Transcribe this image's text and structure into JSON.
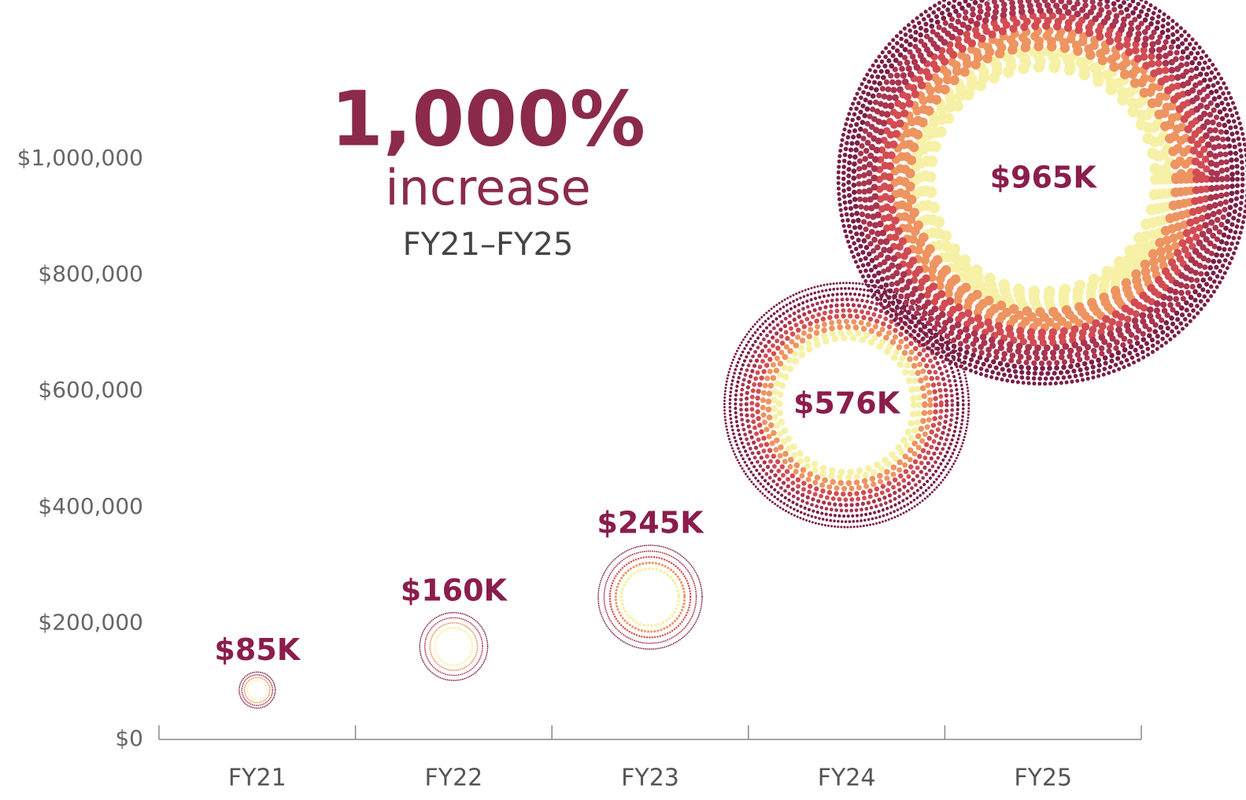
{
  "chart_data": {
    "type": "bubble",
    "annotations": [
      "1,000%",
      "increase",
      "FY21–FY25"
    ],
    "categories": [
      "FY21",
      "FY22",
      "FY23",
      "FY24",
      "FY25"
    ],
    "values": [
      85000,
      160000,
      245000,
      576000,
      965000
    ],
    "value_labels": [
      "$85K",
      "$160K",
      "$245K",
      "$576K",
      "$965K"
    ],
    "ylim": [
      0,
      1000000
    ],
    "yticks": [
      {
        "value": 0,
        "label": "$0"
      },
      {
        "value": 200000,
        "label": "$200,000"
      },
      {
        "value": 400000,
        "label": "$400,000"
      },
      {
        "value": 600000,
        "label": "$600,000"
      },
      {
        "value": 800000,
        "label": "$800,000"
      },
      {
        "value": 1000000,
        "label": "$1,000,000"
      }
    ],
    "colors": [
      "#f6f1a6",
      "#ee9460",
      "#d24c52",
      "#a9344f",
      "#7b1f45"
    ],
    "label_color": "#8b1d4c"
  }
}
